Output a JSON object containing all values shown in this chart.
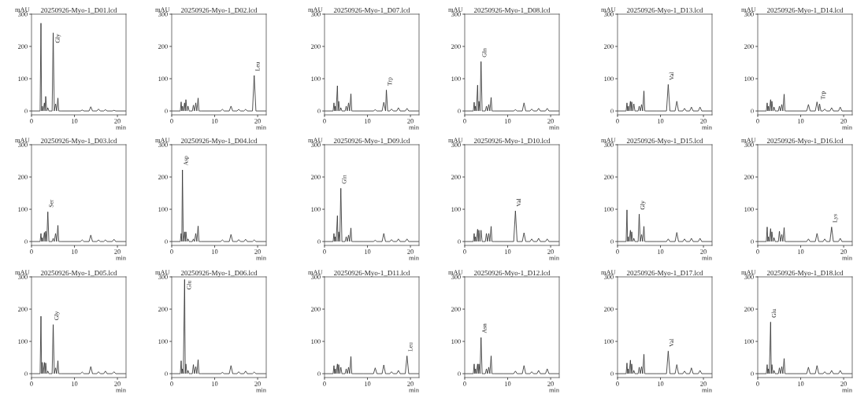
{
  "chart_data": [
    {
      "type": "line",
      "title": "20250926-Myo-1_D01.lcd",
      "ylabel": "mAU",
      "xlabel": "min",
      "color": "#333333",
      "xlim": [
        0,
        22
      ],
      "ylim": [
        -12,
        300
      ],
      "xticks": [
        0,
        10,
        20
      ],
      "yticks": [
        0,
        100,
        200,
        300
      ],
      "x": [
        0,
        2.0,
        2.2,
        2.35,
        2.5,
        2.7,
        3.0,
        3.15,
        3.3,
        3.55,
        3.8,
        4.05,
        4.3,
        4.8,
        5.05,
        5.3,
        5.6,
        5.85,
        6.15,
        6.35,
        6.5,
        6.9,
        9,
        11.4,
        11.8,
        12.2,
        13.4,
        13.8,
        14.2,
        14.4,
        14.7,
        15.2,
        15.6,
        16.0,
        16.8,
        17.2,
        17.6,
        18.8,
        19.2,
        19.6,
        22
      ],
      "values": [
        0,
        0,
        272,
        0,
        15,
        0,
        25,
        0,
        45,
        0,
        10,
        0,
        0,
        0,
        242,
        0,
        22,
        0,
        40,
        0,
        0,
        0,
        0,
        0,
        3,
        0,
        0,
        13,
        0,
        0,
        0,
        0,
        6,
        0,
        0,
        4,
        0,
        0,
        2,
        0,
        0
      ],
      "annotations": [
        {
          "text": "Gly",
          "x": 5.05,
          "y": 242
        }
      ]
    },
    {
      "type": "line",
      "title": "20250926-Myo-1_D02.lcd",
      "ylabel": "mAU",
      "xlabel": "min",
      "color": "#333333",
      "xlim": [
        0,
        22
      ],
      "ylim": [
        -12,
        300
      ],
      "xticks": [
        0,
        10,
        20
      ],
      "yticks": [
        0,
        100,
        200,
        300
      ],
      "x": [
        0,
        2.0,
        2.2,
        2.35,
        2.5,
        2.7,
        3.0,
        3.15,
        3.3,
        3.55,
        3.8,
        4.05,
        4.3,
        4.8,
        5.05,
        5.3,
        5.6,
        5.85,
        6.15,
        6.35,
        6.5,
        6.9,
        9,
        11.4,
        11.8,
        12.2,
        13.4,
        13.8,
        14.2,
        14.4,
        14.7,
        15.2,
        15.6,
        16.0,
        16.8,
        17.2,
        17.6,
        18.8,
        19.2,
        19.6,
        22
      ],
      "values": [
        0,
        0,
        28,
        0,
        15,
        0,
        25,
        0,
        35,
        0,
        15,
        0,
        0,
        0,
        18,
        0,
        25,
        0,
        40,
        0,
        0,
        0,
        0,
        0,
        5,
        0,
        0,
        15,
        0,
        0,
        0,
        0,
        5,
        0,
        0,
        5,
        0,
        0,
        110,
        0,
        0
      ],
      "annotations": [
        {
          "text": "Leu",
          "x": 19.2,
          "y": 110
        }
      ]
    },
    {
      "type": "line",
      "title": "20250926-Myo-1_D07.lcd",
      "ylabel": "mAU",
      "xlabel": "min",
      "color": "#333333",
      "xlim": [
        0,
        22
      ],
      "ylim": [
        -12,
        300
      ],
      "xticks": [
        0,
        10,
        20
      ],
      "yticks": [
        0,
        100,
        200,
        300
      ],
      "x": [
        0,
        2.0,
        2.2,
        2.35,
        2.5,
        2.7,
        3.0,
        3.15,
        3.3,
        3.55,
        3.8,
        4.05,
        4.3,
        4.8,
        5.05,
        5.3,
        5.6,
        5.85,
        6.15,
        6.35,
        6.5,
        6.9,
        9,
        11.4,
        11.8,
        12.2,
        13.4,
        13.8,
        14.2,
        14.4,
        14.7,
        15.2,
        15.6,
        16.0,
        16.8,
        17.2,
        17.6,
        18.8,
        19.2,
        19.6,
        22
      ],
      "values": [
        0,
        0,
        25,
        0,
        15,
        0,
        78,
        0,
        30,
        0,
        10,
        0,
        0,
        0,
        15,
        0,
        25,
        0,
        53,
        0,
        0,
        0,
        0,
        0,
        4,
        0,
        0,
        27,
        0,
        65,
        0,
        0,
        6,
        0,
        0,
        10,
        0,
        0,
        8,
        0,
        0
      ],
      "annotations": [
        {
          "text": "Trp",
          "x": 14.4,
          "y": 65
        }
      ]
    },
    {
      "type": "line",
      "title": "20250926-Myo-1_D08.lcd",
      "ylabel": "mAU",
      "xlabel": "min",
      "color": "#333333",
      "xlim": [
        0,
        22
      ],
      "ylim": [
        -12,
        300
      ],
      "xticks": [
        0,
        10,
        20
      ],
      "yticks": [
        0,
        100,
        200,
        300
      ],
      "x": [
        0,
        2.0,
        2.2,
        2.35,
        2.5,
        2.7,
        3.0,
        3.15,
        3.3,
        3.55,
        3.8,
        4.05,
        4.3,
        4.8,
        5.05,
        5.3,
        5.6,
        5.85,
        6.15,
        6.35,
        6.5,
        6.9,
        9,
        11.4,
        11.8,
        12.2,
        13.4,
        13.8,
        14.2,
        14.4,
        14.7,
        15.2,
        15.6,
        16.0,
        16.8,
        17.2,
        17.6,
        18.8,
        19.2,
        19.6,
        22
      ],
      "values": [
        0,
        0,
        27,
        0,
        15,
        0,
        80,
        0,
        30,
        0,
        153,
        0,
        0,
        0,
        15,
        0,
        20,
        0,
        42,
        0,
        0,
        0,
        0,
        0,
        4,
        0,
        0,
        25,
        0,
        0,
        0,
        0,
        6,
        0,
        0,
        8,
        0,
        0,
        8,
        0,
        0
      ],
      "annotations": [
        {
          "text": "Gln",
          "x": 3.8,
          "y": 153
        }
      ]
    },
    {
      "type": "line",
      "title": "20250926-Myo-1_D13.lcd",
      "ylabel": "mAU",
      "xlabel": "min",
      "color": "#333333",
      "xlim": [
        0,
        22
      ],
      "ylim": [
        -12,
        300
      ],
      "xticks": [
        0,
        10,
        20
      ],
      "yticks": [
        0,
        100,
        200,
        300
      ],
      "x": [
        0,
        2.0,
        2.2,
        2.35,
        2.5,
        2.7,
        3.0,
        3.15,
        3.3,
        3.55,
        3.8,
        4.05,
        4.3,
        4.8,
        5.05,
        5.3,
        5.6,
        5.85,
        6.15,
        6.35,
        6.5,
        6.9,
        9,
        11.4,
        11.8,
        12.2,
        13.4,
        13.8,
        14.2,
        14.4,
        14.7,
        15.2,
        15.6,
        16.0,
        16.8,
        17.2,
        17.6,
        18.8,
        19.2,
        19.6,
        22
      ],
      "values": [
        0,
        0,
        25,
        0,
        15,
        0,
        30,
        0,
        28,
        0,
        22,
        0,
        0,
        0,
        15,
        0,
        20,
        0,
        62,
        0,
        0,
        0,
        0,
        0,
        82,
        0,
        0,
        30,
        0,
        0,
        0,
        0,
        8,
        0,
        0,
        12,
        0,
        0,
        12,
        0,
        0
      ],
      "annotations": [
        {
          "text": "Val",
          "x": 11.8,
          "y": 82
        }
      ]
    },
    {
      "type": "line",
      "title": "20250926-Myo-1_D14.lcd",
      "ylabel": "mAU",
      "xlabel": "min",
      "color": "#333333",
      "xlim": [
        0,
        22
      ],
      "ylim": [
        -12,
        300
      ],
      "xticks": [
        0,
        10,
        20
      ],
      "yticks": [
        0,
        100,
        200,
        300
      ],
      "x": [
        0,
        2.0,
        2.2,
        2.35,
        2.5,
        2.7,
        3.0,
        3.15,
        3.3,
        3.55,
        3.8,
        4.05,
        4.3,
        4.8,
        5.05,
        5.3,
        5.6,
        5.85,
        6.15,
        6.35,
        6.5,
        6.9,
        9,
        11.4,
        11.8,
        12.2,
        13.4,
        13.8,
        14.2,
        14.4,
        14.7,
        15.2,
        15.6,
        16.0,
        16.8,
        17.2,
        17.6,
        18.8,
        19.2,
        19.6,
        22
      ],
      "values": [
        0,
        0,
        25,
        0,
        15,
        0,
        35,
        0,
        30,
        0,
        12,
        0,
        0,
        0,
        15,
        0,
        20,
        0,
        52,
        0,
        0,
        0,
        0,
        0,
        20,
        0,
        0,
        28,
        0,
        22,
        0,
        0,
        6,
        0,
        0,
        10,
        0,
        0,
        12,
        0,
        0
      ],
      "annotations": [
        {
          "text": "Trp",
          "x": 14.4,
          "y": 22
        }
      ]
    },
    {
      "type": "line",
      "title": "20250926-Myo-1_D03.lcd",
      "ylabel": "mAU",
      "xlabel": "min",
      "color": "#333333",
      "xlim": [
        0,
        22
      ],
      "ylim": [
        -12,
        300
      ],
      "xticks": [
        0,
        10,
        20
      ],
      "yticks": [
        0,
        100,
        200,
        300
      ],
      "x": [
        0,
        2.0,
        2.2,
        2.35,
        2.5,
        2.7,
        3.0,
        3.15,
        3.3,
        3.55,
        3.8,
        4.05,
        4.3,
        4.8,
        5.05,
        5.3,
        5.6,
        5.85,
        6.15,
        6.35,
        6.5,
        6.9,
        9,
        11.4,
        11.8,
        12.2,
        13.4,
        13.8,
        14.2,
        14.4,
        14.7,
        15.2,
        15.6,
        16.0,
        16.8,
        17.2,
        17.6,
        18.8,
        19.2,
        19.6,
        22
      ],
      "values": [
        0,
        0,
        25,
        0,
        12,
        0,
        28,
        0,
        32,
        0,
        92,
        0,
        0,
        0,
        10,
        0,
        25,
        0,
        50,
        0,
        0,
        0,
        0,
        0,
        5,
        0,
        0,
        20,
        0,
        0,
        0,
        0,
        5,
        0,
        0,
        5,
        0,
        0,
        7,
        0,
        0
      ],
      "annotations": [
        {
          "text": "Ser",
          "x": 3.8,
          "y": 92
        }
      ]
    },
    {
      "type": "line",
      "title": "20250926-Myo-1_D04.lcd",
      "ylabel": "mAU",
      "xlabel": "min",
      "color": "#333333",
      "xlim": [
        0,
        22
      ],
      "ylim": [
        -12,
        300
      ],
      "xticks": [
        0,
        10,
        20
      ],
      "yticks": [
        0,
        100,
        200,
        300
      ],
      "x": [
        0,
        2.0,
        2.2,
        2.35,
        2.5,
        2.7,
        3.0,
        3.15,
        3.3,
        3.55,
        3.8,
        4.05,
        4.3,
        4.8,
        5.05,
        5.3,
        5.6,
        5.85,
        6.15,
        6.35,
        6.5,
        6.9,
        9,
        11.4,
        11.8,
        12.2,
        13.4,
        13.8,
        14.2,
        14.4,
        14.7,
        15.2,
        15.6,
        16.0,
        16.8,
        17.2,
        17.6,
        18.8,
        19.2,
        19.6,
        22
      ],
      "values": [
        0,
        0,
        25,
        0,
        222,
        0,
        30,
        0,
        30,
        0,
        8,
        0,
        0,
        0,
        8,
        0,
        25,
        0,
        48,
        0,
        0,
        0,
        0,
        0,
        5,
        0,
        0,
        22,
        0,
        0,
        0,
        0,
        6,
        0,
        0,
        7,
        0,
        0,
        5,
        0,
        0
      ],
      "annotations": [
        {
          "text": "Asp",
          "x": 2.5,
          "y": 222
        }
      ]
    },
    {
      "type": "line",
      "title": "20250926-Myo-1_D09.lcd",
      "ylabel": "mAU",
      "xlabel": "min",
      "color": "#333333",
      "xlim": [
        0,
        22
      ],
      "ylim": [
        -12,
        300
      ],
      "xticks": [
        0,
        10,
        20
      ],
      "yticks": [
        0,
        100,
        200,
        300
      ],
      "x": [
        0,
        2.0,
        2.2,
        2.35,
        2.5,
        2.7,
        3.0,
        3.15,
        3.3,
        3.55,
        3.8,
        4.05,
        4.3,
        4.8,
        5.05,
        5.3,
        5.6,
        5.85,
        6.15,
        6.35,
        6.5,
        6.9,
        9,
        11.4,
        11.8,
        12.2,
        13.4,
        13.8,
        14.2,
        14.4,
        14.7,
        15.2,
        15.6,
        16.0,
        16.8,
        17.2,
        17.6,
        18.8,
        19.2,
        19.6,
        22
      ],
      "values": [
        0,
        0,
        25,
        0,
        15,
        0,
        80,
        0,
        30,
        0,
        165,
        0,
        0,
        0,
        15,
        0,
        20,
        0,
        42,
        0,
        0,
        0,
        0,
        0,
        4,
        0,
        0,
        25,
        0,
        0,
        0,
        0,
        6,
        0,
        0,
        8,
        0,
        0,
        8,
        0,
        0
      ],
      "annotations": [
        {
          "text": "Gln",
          "x": 3.8,
          "y": 165
        }
      ]
    },
    {
      "type": "line",
      "title": "20250926-Myo-1_D10.lcd",
      "ylabel": "mAU",
      "xlabel": "min",
      "color": "#333333",
      "xlim": [
        0,
        22
      ],
      "ylim": [
        -12,
        300
      ],
      "xticks": [
        0,
        10,
        20
      ],
      "yticks": [
        0,
        100,
        200,
        300
      ],
      "x": [
        0,
        2.0,
        2.2,
        2.35,
        2.5,
        2.7,
        3.0,
        3.15,
        3.3,
        3.55,
        3.8,
        4.05,
        4.3,
        4.8,
        5.05,
        5.3,
        5.6,
        5.85,
        6.15,
        6.35,
        6.5,
        6.9,
        9,
        11.4,
        11.8,
        12.2,
        13.4,
        13.8,
        14.2,
        14.4,
        14.7,
        15.2,
        15.6,
        16.0,
        16.8,
        17.2,
        17.6,
        18.8,
        19.2,
        19.6,
        22
      ],
      "values": [
        0,
        0,
        25,
        0,
        15,
        0,
        38,
        0,
        35,
        0,
        35,
        0,
        0,
        0,
        25,
        0,
        25,
        0,
        47,
        0,
        0,
        0,
        0,
        0,
        95,
        0,
        0,
        27,
        0,
        0,
        0,
        0,
        8,
        0,
        0,
        10,
        0,
        0,
        8,
        0,
        0
      ],
      "annotations": [
        {
          "text": "Val",
          "x": 11.8,
          "y": 95
        }
      ]
    },
    {
      "type": "line",
      "title": "20250926-Myo-1_D15.lcd",
      "ylabel": "mAU",
      "xlabel": "min",
      "color": "#333333",
      "xlim": [
        0,
        22
      ],
      "ylim": [
        -12,
        300
      ],
      "xticks": [
        0,
        10,
        20
      ],
      "yticks": [
        0,
        100,
        200,
        300
      ],
      "x": [
        0,
        2.0,
        2.2,
        2.35,
        2.5,
        2.7,
        3.0,
        3.15,
        3.3,
        3.55,
        3.8,
        4.05,
        4.3,
        4.8,
        5.05,
        5.3,
        5.6,
        5.85,
        6.15,
        6.35,
        6.5,
        6.9,
        9,
        11.4,
        11.8,
        12.2,
        13.4,
        13.8,
        14.2,
        14.4,
        14.7,
        15.2,
        15.6,
        16.0,
        16.8,
        17.2,
        17.6,
        18.8,
        19.2,
        19.6,
        22
      ],
      "values": [
        0,
        0,
        98,
        0,
        15,
        0,
        35,
        0,
        30,
        0,
        10,
        0,
        0,
        0,
        85,
        0,
        22,
        0,
        47,
        0,
        0,
        0,
        0,
        0,
        8,
        0,
        0,
        28,
        0,
        0,
        0,
        0,
        8,
        0,
        0,
        10,
        0,
        0,
        10,
        0,
        0
      ],
      "annotations": [
        {
          "text": "Gly",
          "x": 5.05,
          "y": 85
        }
      ]
    },
    {
      "type": "line",
      "title": "20250926-Myo-1_D16.lcd",
      "ylabel": "mAU",
      "xlabel": "min",
      "color": "#333333",
      "xlim": [
        0,
        22
      ],
      "ylim": [
        -12,
        300
      ],
      "xticks": [
        0,
        10,
        20
      ],
      "yticks": [
        0,
        100,
        200,
        300
      ],
      "x": [
        0,
        2.0,
        2.2,
        2.35,
        2.5,
        2.7,
        3.0,
        3.15,
        3.3,
        3.55,
        3.8,
        4.05,
        4.3,
        4.8,
        5.05,
        5.3,
        5.6,
        5.85,
        6.15,
        6.35,
        6.5,
        6.9,
        9,
        11.4,
        11.8,
        12.2,
        13.4,
        13.8,
        14.2,
        14.4,
        14.7,
        15.2,
        15.6,
        16.0,
        16.8,
        17.2,
        17.6,
        18.8,
        19.2,
        19.6,
        22
      ],
      "values": [
        0,
        0,
        45,
        0,
        15,
        0,
        40,
        0,
        30,
        0,
        12,
        0,
        0,
        0,
        32,
        0,
        22,
        0,
        43,
        0,
        0,
        0,
        0,
        0,
        8,
        0,
        0,
        25,
        0,
        0,
        0,
        0,
        8,
        0,
        0,
        45,
        0,
        0,
        10,
        0,
        0
      ],
      "annotations": [
        {
          "text": "Lys",
          "x": 17.2,
          "y": 45
        }
      ]
    },
    {
      "type": "line",
      "title": "20250926-Myo-1_D05.lcd",
      "ylabel": "mAU",
      "xlabel": "min",
      "color": "#333333",
      "xlim": [
        0,
        22
      ],
      "ylim": [
        -12,
        300
      ],
      "xticks": [
        0,
        10,
        20
      ],
      "yticks": [
        0,
        100,
        200,
        300
      ],
      "x": [
        0,
        2.0,
        2.2,
        2.35,
        2.5,
        2.7,
        3.0,
        3.15,
        3.3,
        3.55,
        3.8,
        4.05,
        4.3,
        4.8,
        5.05,
        5.3,
        5.6,
        5.85,
        6.15,
        6.35,
        6.5,
        6.9,
        9,
        11.4,
        11.8,
        12.2,
        13.4,
        13.8,
        14.2,
        14.4,
        14.7,
        15.2,
        15.6,
        16.0,
        16.8,
        17.2,
        17.6,
        18.8,
        19.2,
        19.6,
        22
      ],
      "values": [
        0,
        0,
        178,
        0,
        35,
        0,
        35,
        0,
        33,
        0,
        8,
        0,
        0,
        0,
        152,
        0,
        18,
        0,
        40,
        0,
        0,
        0,
        0,
        0,
        5,
        0,
        0,
        22,
        0,
        0,
        0,
        0,
        6,
        0,
        0,
        8,
        0,
        0,
        6,
        0,
        0
      ],
      "annotations": [
        {
          "text": "Gly",
          "x": 5.05,
          "y": 152
        }
      ]
    },
    {
      "type": "line",
      "title": "20250926-Myo-1_D06.lcd",
      "ylabel": "mAU",
      "xlabel": "min",
      "color": "#333333",
      "xlim": [
        0,
        22
      ],
      "ylim": [
        -12,
        300
      ],
      "xticks": [
        0,
        10,
        20
      ],
      "yticks": [
        0,
        100,
        200,
        300
      ],
      "x": [
        0,
        2.0,
        2.2,
        2.35,
        2.5,
        2.7,
        3.0,
        3.15,
        3.3,
        3.55,
        3.8,
        4.05,
        4.3,
        4.8,
        5.05,
        5.3,
        5.6,
        5.85,
        6.15,
        6.35,
        6.5,
        6.9,
        9,
        11.4,
        11.8,
        12.2,
        13.4,
        13.8,
        14.2,
        14.4,
        14.7,
        15.2,
        15.6,
        16.0,
        16.8,
        17.2,
        17.6,
        18.8,
        19.2,
        19.6,
        22
      ],
      "values": [
        0,
        0,
        40,
        0,
        15,
        0,
        292,
        0,
        30,
        0,
        10,
        0,
        0,
        0,
        28,
        0,
        22,
        0,
        43,
        0,
        0,
        0,
        0,
        0,
        4,
        0,
        0,
        25,
        0,
        0,
        0,
        0,
        6,
        0,
        0,
        8,
        0,
        0,
        5,
        0,
        0
      ],
      "annotations": [
        {
          "text": "Glu",
          "x": 3.0,
          "y": 292
        }
      ]
    },
    {
      "type": "line",
      "title": "20250926-Myo-1_D11.lcd",
      "ylabel": "mAU",
      "xlabel": "min",
      "color": "#333333",
      "xlim": [
        0,
        22
      ],
      "ylim": [
        -12,
        300
      ],
      "xticks": [
        0,
        10,
        20
      ],
      "yticks": [
        0,
        100,
        200,
        300
      ],
      "x": [
        0,
        2.0,
        2.2,
        2.35,
        2.5,
        2.7,
        3.0,
        3.15,
        3.3,
        3.55,
        3.8,
        4.05,
        4.3,
        4.8,
        5.05,
        5.3,
        5.6,
        5.85,
        6.15,
        6.35,
        6.5,
        6.9,
        9,
        11.4,
        11.8,
        12.2,
        13.4,
        13.8,
        14.2,
        14.4,
        14.7,
        15.2,
        15.6,
        16.0,
        16.8,
        17.2,
        17.6,
        18.8,
        19.2,
        19.6,
        22
      ],
      "values": [
        0,
        0,
        25,
        0,
        15,
        0,
        30,
        0,
        28,
        0,
        20,
        0,
        0,
        0,
        15,
        0,
        20,
        0,
        53,
        0,
        0,
        0,
        0,
        0,
        18,
        0,
        0,
        27,
        0,
        0,
        0,
        0,
        6,
        0,
        0,
        10,
        0,
        0,
        55,
        0,
        0
      ],
      "annotations": [
        {
          "text": "Leu",
          "x": 19.2,
          "y": 55
        }
      ]
    },
    {
      "type": "line",
      "title": "20250926-Myo-1_D12.lcd",
      "ylabel": "mAU",
      "xlabel": "min",
      "color": "#333333",
      "xlim": [
        0,
        22
      ],
      "ylim": [
        -12,
        300
      ],
      "xticks": [
        0,
        10,
        20
      ],
      "yticks": [
        0,
        100,
        200,
        300
      ],
      "x": [
        0,
        2.0,
        2.2,
        2.35,
        2.5,
        2.7,
        3.0,
        3.15,
        3.3,
        3.55,
        3.8,
        4.05,
        4.3,
        4.8,
        5.05,
        5.3,
        5.6,
        5.85,
        6.15,
        6.35,
        6.5,
        6.9,
        9,
        11.4,
        11.8,
        12.2,
        13.4,
        13.8,
        14.2,
        14.4,
        14.7,
        15.2,
        15.6,
        16.0,
        16.8,
        17.2,
        17.6,
        18.8,
        19.2,
        19.6,
        22
      ],
      "values": [
        0,
        0,
        30,
        0,
        15,
        0,
        30,
        0,
        30,
        0,
        112,
        0,
        0,
        0,
        15,
        0,
        20,
        0,
        55,
        0,
        0,
        0,
        0,
        0,
        8,
        0,
        0,
        25,
        0,
        0,
        0,
        0,
        6,
        0,
        0,
        10,
        0,
        0,
        15,
        0,
        0
      ],
      "annotations": [
        {
          "text": "Asn",
          "x": 3.8,
          "y": 112
        }
      ]
    },
    {
      "type": "line",
      "title": "20250926-Myo-1_D17.lcd",
      "ylabel": "mAU",
      "xlabel": "min",
      "color": "#333333",
      "xlim": [
        0,
        22
      ],
      "ylim": [
        -12,
        300
      ],
      "xticks": [
        0,
        10,
        20
      ],
      "yticks": [
        0,
        100,
        200,
        300
      ],
      "x": [
        0,
        2.0,
        2.2,
        2.35,
        2.5,
        2.7,
        3.0,
        3.15,
        3.3,
        3.55,
        3.8,
        4.05,
        4.3,
        4.8,
        5.05,
        5.3,
        5.6,
        5.85,
        6.15,
        6.35,
        6.5,
        6.9,
        9,
        11.4,
        11.8,
        12.2,
        13.4,
        13.8,
        14.2,
        14.4,
        14.7,
        15.2,
        15.6,
        16.0,
        16.8,
        17.2,
        17.6,
        18.8,
        19.2,
        19.6,
        22
      ],
      "values": [
        0,
        0,
        33,
        0,
        15,
        0,
        42,
        0,
        30,
        0,
        10,
        0,
        0,
        0,
        20,
        0,
        22,
        0,
        60,
        0,
        0,
        0,
        0,
        0,
        70,
        0,
        0,
        28,
        0,
        0,
        0,
        0,
        8,
        0,
        0,
        18,
        0,
        0,
        10,
        0,
        0
      ],
      "annotations": [
        {
          "text": "Val",
          "x": 11.8,
          "y": 70
        }
      ]
    },
    {
      "type": "line",
      "title": "20250926-Myo-1_D18.lcd",
      "ylabel": "mAU",
      "xlabel": "min",
      "color": "#333333",
      "xlim": [
        0,
        22
      ],
      "ylim": [
        -12,
        300
      ],
      "xticks": [
        0,
        10,
        20
      ],
      "yticks": [
        0,
        100,
        200,
        300
      ],
      "x": [
        0,
        2.0,
        2.2,
        2.35,
        2.5,
        2.7,
        3.0,
        3.15,
        3.3,
        3.55,
        3.8,
        4.05,
        4.3,
        4.8,
        5.05,
        5.3,
        5.6,
        5.85,
        6.15,
        6.35,
        6.5,
        6.9,
        9,
        11.4,
        11.8,
        12.2,
        13.4,
        13.8,
        14.2,
        14.4,
        14.7,
        15.2,
        15.6,
        16.0,
        16.8,
        17.2,
        17.6,
        18.8,
        19.2,
        19.6,
        22
      ],
      "values": [
        0,
        0,
        28,
        0,
        15,
        0,
        160,
        0,
        28,
        0,
        10,
        0,
        0,
        0,
        18,
        0,
        22,
        0,
        47,
        0,
        0,
        0,
        0,
        0,
        20,
        0,
        0,
        25,
        0,
        0,
        0,
        0,
        6,
        0,
        0,
        10,
        0,
        0,
        10,
        0,
        0
      ],
      "annotations": [
        {
          "text": "Glu",
          "x": 3.0,
          "y": 160
        }
      ]
    }
  ]
}
